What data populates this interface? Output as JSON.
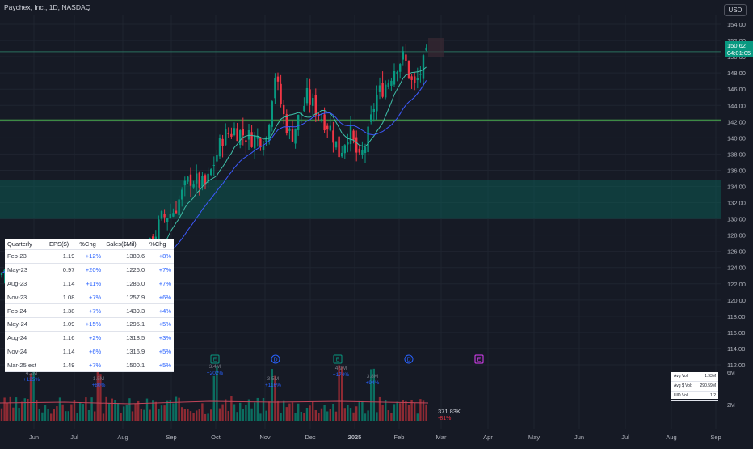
{
  "header": {
    "title": "Paychex, Inc., 1D, NASDAQ",
    "currency": "USD",
    "last_price": "150.62",
    "countdown": "04:01:05"
  },
  "colors": {
    "background": "#161a25",
    "up": "#089981",
    "down": "#f23645",
    "ma_fast": "#3fbfa8",
    "ma_slow": "#3d5afe",
    "support_line": "#4caf50",
    "zone": "#0d5a52"
  },
  "price_axis_labels": [
    "154.00",
    "152.00",
    "150.00",
    "148.00",
    "146.00",
    "144.00",
    "142.00",
    "140.00",
    "138.00",
    "136.00",
    "134.00",
    "132.00",
    "130.00",
    "128.00",
    "126.00",
    "124.00",
    "122.00",
    "120.00",
    "118.00",
    "116.00",
    "114.00",
    "112.00"
  ],
  "volume_axis_labels": [
    "6M",
    "2M"
  ],
  "time_axis_labels": [
    "Jun",
    "Jul",
    "Aug",
    "Sep",
    "Oct",
    "Nov",
    "Dec",
    "2025",
    "Feb",
    "Mar",
    "Apr",
    "May",
    "Jun",
    "Jul",
    "Aug",
    "Sep"
  ],
  "earnings_table": {
    "headers": [
      "Quarterly",
      "EPS($)",
      "%Chg",
      "Sales($Mil)",
      "%Chg"
    ],
    "rows": [
      {
        "q": "Feb-23",
        "eps": "1.19",
        "eps_chg": "+12%",
        "sales": "1380.6",
        "sales_chg": "+8%"
      },
      {
        "q": "May-23",
        "eps": "0.97",
        "eps_chg": "+20%",
        "sales": "1226.0",
        "sales_chg": "+7%"
      },
      {
        "q": "Aug-23",
        "eps": "1.14",
        "eps_chg": "+11%",
        "sales": "1286.0",
        "sales_chg": "+7%"
      },
      {
        "q": "Nov-23",
        "eps": "1.08",
        "eps_chg": "+7%",
        "sales": "1257.9",
        "sales_chg": "+6%"
      },
      {
        "q": "Feb-24",
        "eps": "1.38",
        "eps_chg": "+7%",
        "sales": "1439.3",
        "sales_chg": "+4%"
      },
      {
        "q": "May-24",
        "eps": "1.09",
        "eps_chg": "+15%",
        "sales": "1295.1",
        "sales_chg": "+5%"
      },
      {
        "q": "Aug-24",
        "eps": "1.16",
        "eps_chg": "+2%",
        "sales": "1318.5",
        "sales_chg": "+3%"
      },
      {
        "q": "Nov-24",
        "eps": "1.14",
        "eps_chg": "+6%",
        "sales": "1316.9",
        "sales_chg": "+5%"
      },
      {
        "q": "Mar-25 est",
        "eps": "1.49",
        "eps_chg": "+7%",
        "sales": "1500.1",
        "sales_chg": "+5%"
      }
    ]
  },
  "events": [
    {
      "type": "E",
      "label": "E",
      "color": "#089981",
      "x": 87
    },
    {
      "type": "D",
      "label": "D",
      "color": "#2962ff",
      "x": 167
    },
    {
      "type": "E",
      "label": "E",
      "color": "#089981",
      "x": 266
    },
    {
      "type": "D",
      "label": "D",
      "color": "#2962ff",
      "x": 341
    },
    {
      "type": "E",
      "label": "E",
      "color": "#089981",
      "x": 418
    },
    {
      "type": "D",
      "label": "D",
      "color": "#2962ff",
      "x": 506
    },
    {
      "type": "E",
      "label": "E",
      "color": "#e040fb",
      "x": 593
    }
  ],
  "volume_annotations": [
    {
      "vol": "4.2M",
      "chg": "+125%",
      "x": 39,
      "y": 463
    },
    {
      "vol": "1.5M",
      "chg": "+80%",
      "x": 122,
      "y": 470
    },
    {
      "vol": "3.4M",
      "chg": "+202%",
      "x": 266,
      "y": 455
    },
    {
      "vol": "3.5M",
      "chg": "+116%",
      "x": 338,
      "y": 470
    },
    {
      "vol": "4.9M",
      "chg": "+174%",
      "x": 422,
      "y": 457
    },
    {
      "vol": "3.8M",
      "chg": "+94%",
      "x": 461,
      "y": 467
    }
  ],
  "volume_stats": {
    "avg_vol_label": "Avg Vol:",
    "avg_vol": "1.93M",
    "avg_dollar_label": "Avg $ Vol:",
    "avg_dollar": "290.59M",
    "ud_label": "U/D Vol:",
    "ud": "1.2"
  },
  "volume_last": {
    "value": "371.83K",
    "change": "-81%"
  },
  "chart_data": {
    "type": "candlestick",
    "title": "Paychex, Inc., 1D, NASDAQ",
    "ylim": [
      112,
      155
    ],
    "support_line": 142.2,
    "resistance_line": 150.62,
    "zone": [
      130.0,
      134.8
    ],
    "key_points": [
      {
        "date": "Jun-24",
        "close": 119.0
      },
      {
        "date": "Jul-24",
        "close": 120.5
      },
      {
        "date": "Aug-24",
        "close": 124.5
      },
      {
        "date": "Sep-24",
        "close": 133.0
      },
      {
        "date": "Oct-24",
        "close": 141.0
      },
      {
        "date": "Nov-24",
        "close": 148.0
      },
      {
        "date": "Dec-24",
        "close": 143.0
      },
      {
        "date": "Jan-25",
        "close": 139.0
      },
      {
        "date": "Feb-25",
        "close": 149.0
      },
      {
        "date": "Feb-25 last",
        "close": 150.62
      }
    ]
  }
}
